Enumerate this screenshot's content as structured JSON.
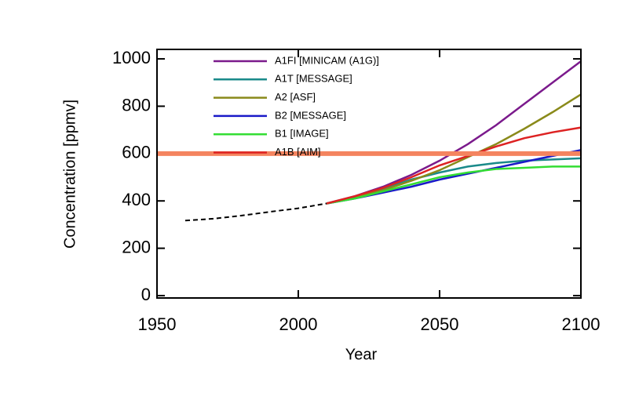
{
  "chart_data": {
    "type": "line",
    "x_label": "Year",
    "y_label": "Concentration [ppmv]",
    "xlim": [
      1950,
      2100
    ],
    "xticks": [
      1950,
      2000,
      2050,
      2100
    ],
    "ylim": [
      -10,
      1040
    ],
    "yticks": [
      0,
      200,
      400,
      600,
      800,
      1000
    ],
    "x": [
      2010,
      2020,
      2030,
      2040,
      2050,
      2060,
      2070,
      2080,
      2090,
      2100
    ],
    "series": [
      {
        "name": "A1FI [MINICAM (A1G)]",
        "color": "#7b1a8c",
        "values": [
          389,
          420,
          460,
          510,
          570,
          640,
          720,
          810,
          900,
          990
        ]
      },
      {
        "name": "A1T [MESSAGE]",
        "color": "#1a8a8a",
        "values": [
          389,
          415,
          450,
          490,
          520,
          545,
          560,
          570,
          575,
          580
        ]
      },
      {
        "name": "A2 [ASF]",
        "color": "#8a8a1a",
        "values": [
          389,
          415,
          445,
          485,
          530,
          585,
          640,
          705,
          775,
          850
        ]
      },
      {
        "name": "B2 [MESSAGE]",
        "color": "#1a1ac8",
        "values": [
          389,
          410,
          435,
          460,
          490,
          515,
          540,
          565,
          590,
          615
        ]
      },
      {
        "name": "B1 [IMAGE]",
        "color": "#33dd33",
        "values": [
          389,
          410,
          440,
          470,
          500,
          520,
          535,
          540,
          545,
          545
        ]
      },
      {
        "name": "A1B [AIM]",
        "color": "#dd2222",
        "values": [
          389,
          420,
          455,
          500,
          550,
          590,
          630,
          665,
          690,
          710
        ]
      }
    ],
    "historical": {
      "color": "#000000",
      "x": [
        1960,
        1970,
        1980,
        1990,
        2000,
        2010
      ],
      "values": [
        317,
        325,
        338,
        354,
        369,
        389
      ]
    },
    "hline": {
      "value": 600,
      "color": "#f4845f"
    }
  }
}
